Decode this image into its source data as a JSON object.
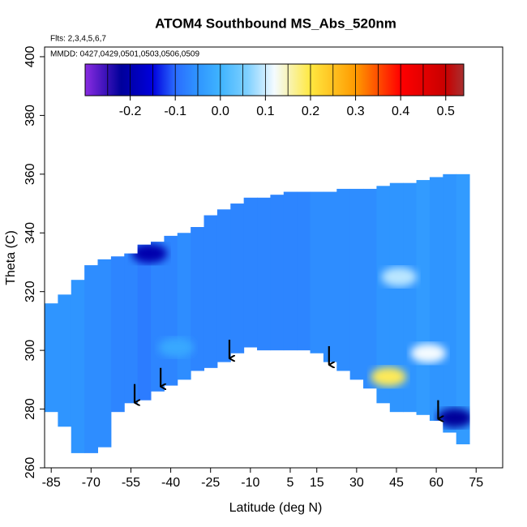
{
  "chart_data": {
    "type": "heatmap",
    "title": "ATOM4 Southbound MS_Abs_520nm",
    "subtitle": "Flts: 2,3,4,5,6,7",
    "annotation": "MMDD: 0427,0429,0501,0503,0506,0509",
    "x_label": "Latitude (deg N)",
    "y_label": "Theta (C)",
    "xlim": [
      -87.5,
      85
    ],
    "ylim": [
      260,
      403.3
    ],
    "xticks": [
      -85,
      -70,
      -55,
      -40,
      -25,
      -10,
      5,
      15,
      30,
      45,
      60,
      75
    ],
    "yticks": [
      260,
      280,
      300,
      320,
      340,
      360,
      380,
      400
    ],
    "field": {
      "lat": [
        -85,
        -80,
        -75,
        -70,
        -65,
        -60,
        -55,
        -50,
        -45,
        -40,
        -35,
        -30,
        -25,
        -20,
        -15,
        -10,
        -5,
        0,
        5,
        10,
        15,
        20,
        25,
        30,
        35,
        40,
        45,
        50,
        55,
        60,
        65,
        70
      ],
      "bottom": [
        279,
        274,
        265,
        265,
        267,
        279,
        282,
        283,
        286,
        288,
        290,
        293,
        294,
        296,
        299,
        301,
        300,
        300,
        300,
        300,
        299,
        296,
        293,
        290,
        287,
        282,
        279,
        279,
        278,
        276,
        272,
        268
      ],
      "top": [
        316,
        319,
        324,
        329,
        331,
        332,
        333,
        336,
        337,
        339,
        340,
        342,
        346,
        348,
        350,
        352,
        352,
        353,
        354,
        354,
        354,
        354,
        355,
        355,
        355,
        356,
        357,
        357,
        358,
        359,
        360,
        360
      ],
      "values": [
        -0.05,
        -0.05,
        -0.05,
        -0.06,
        -0.06,
        -0.07,
        -0.07,
        -0.08,
        -0.07,
        -0.07,
        -0.06,
        -0.07,
        -0.07,
        -0.07,
        -0.07,
        -0.07,
        -0.07,
        -0.07,
        -0.07,
        -0.07,
        -0.06,
        -0.06,
        -0.06,
        -0.06,
        -0.06,
        -0.05,
        -0.05,
        -0.05,
        -0.04,
        -0.05,
        -0.05,
        -0.04
      ]
    },
    "features": [
      {
        "lat": -48,
        "theta": 333,
        "value": -0.2
      },
      {
        "lat": -38,
        "theta": 301,
        "value": -0.02
      },
      {
        "lat": 46,
        "theta": 325,
        "value": 0.09
      },
      {
        "lat": 57,
        "theta": 299,
        "value": 0.12
      },
      {
        "lat": 42,
        "theta": 291,
        "value": 0.19
      },
      {
        "lat": 67,
        "theta": 277,
        "value": -0.22
      }
    ],
    "arrows": [
      {
        "lat": -53.6,
        "theta": 281.9
      },
      {
        "lat": -43.8,
        "theta": 287.4
      },
      {
        "lat": -17.9,
        "theta": 297
      },
      {
        "lat": 19.6,
        "theta": 294.8
      },
      {
        "lat": 60.7,
        "theta": 276.4
      }
    ],
    "colorbar": {
      "lim": [
        -0.3,
        0.54
      ],
      "ticks": [
        -0.2,
        -0.1,
        {
          "value": 0,
          "label": "0.0"
        },
        0.1,
        0.2,
        0.3,
        0.4,
        0.5
      ],
      "breaks": [
        -0.25,
        -0.2,
        -0.15,
        -0.1,
        -0.05,
        0,
        0.05,
        0.1,
        0.15,
        0.2,
        0.25,
        0.3,
        0.35,
        0.4,
        0.45,
        0.5
      ],
      "stops": [
        {
          "value": -0.3,
          "color": "#8a2be2"
        },
        {
          "value": -0.22,
          "color": "#00009a"
        },
        {
          "value": -0.15,
          "color": "#0000dd"
        },
        {
          "value": -0.1,
          "color": "#2a6cff"
        },
        {
          "value": -0.05,
          "color": "#2f95ff"
        },
        {
          "value": 0,
          "color": "#3fb4ff"
        },
        {
          "value": 0.06,
          "color": "#7fd0ff"
        },
        {
          "value": 0.12,
          "color": "#f4fbff"
        },
        {
          "value": 0.2,
          "color": "#ffe840"
        },
        {
          "value": 0.3,
          "color": "#ff9a00"
        },
        {
          "value": 0.4,
          "color": "#ff0000"
        },
        {
          "value": 0.5,
          "color": "#c80000"
        },
        {
          "value": 0.54,
          "color": "#a83030"
        }
      ]
    }
  }
}
